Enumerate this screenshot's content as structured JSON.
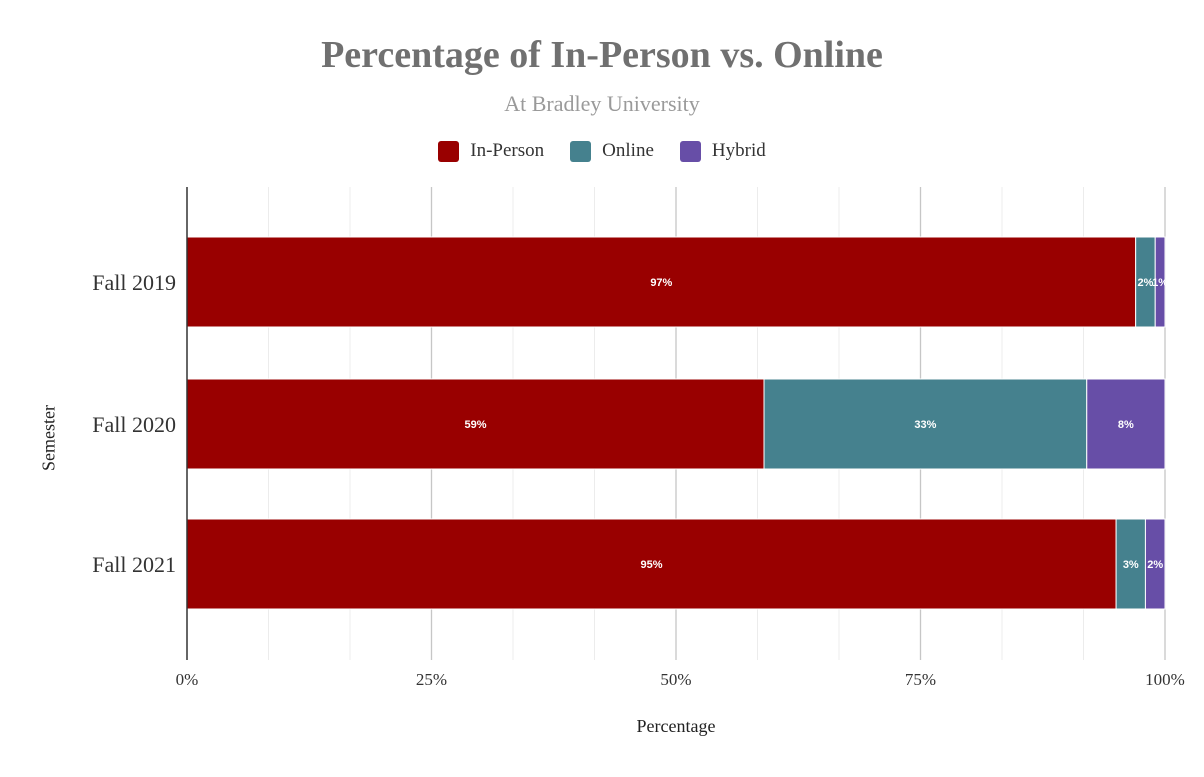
{
  "chart_data": {
    "type": "bar",
    "orientation": "horizontal",
    "stacked": true,
    "title": "Percentage of In-Person vs. Online",
    "subtitle": "At Bradley University",
    "xlabel": "Percentage",
    "ylabel": "Semester",
    "categories": [
      "Fall 2019",
      "Fall 2020",
      "Fall 2021"
    ],
    "series": [
      {
        "name": "In-Person",
        "color": "#990000",
        "values": [
          97,
          59,
          95
        ],
        "labels": [
          "97%",
          "59%",
          "95%"
        ]
      },
      {
        "name": "Online",
        "color": "#45818e",
        "values": [
          2,
          33,
          3
        ],
        "labels": [
          "2%",
          "33%",
          "3%"
        ]
      },
      {
        "name": "Hybrid",
        "color": "#674ea7",
        "values": [
          1,
          8,
          2
        ],
        "labels": [
          "1%",
          "8%",
          "2%"
        ]
      }
    ],
    "xlim": [
      0,
      100
    ],
    "xticks": [
      0,
      25,
      50,
      75,
      100
    ],
    "xtick_labels": [
      "0%",
      "25%",
      "50%",
      "75%",
      "100%"
    ],
    "grid": true,
    "legend_position": "top"
  }
}
